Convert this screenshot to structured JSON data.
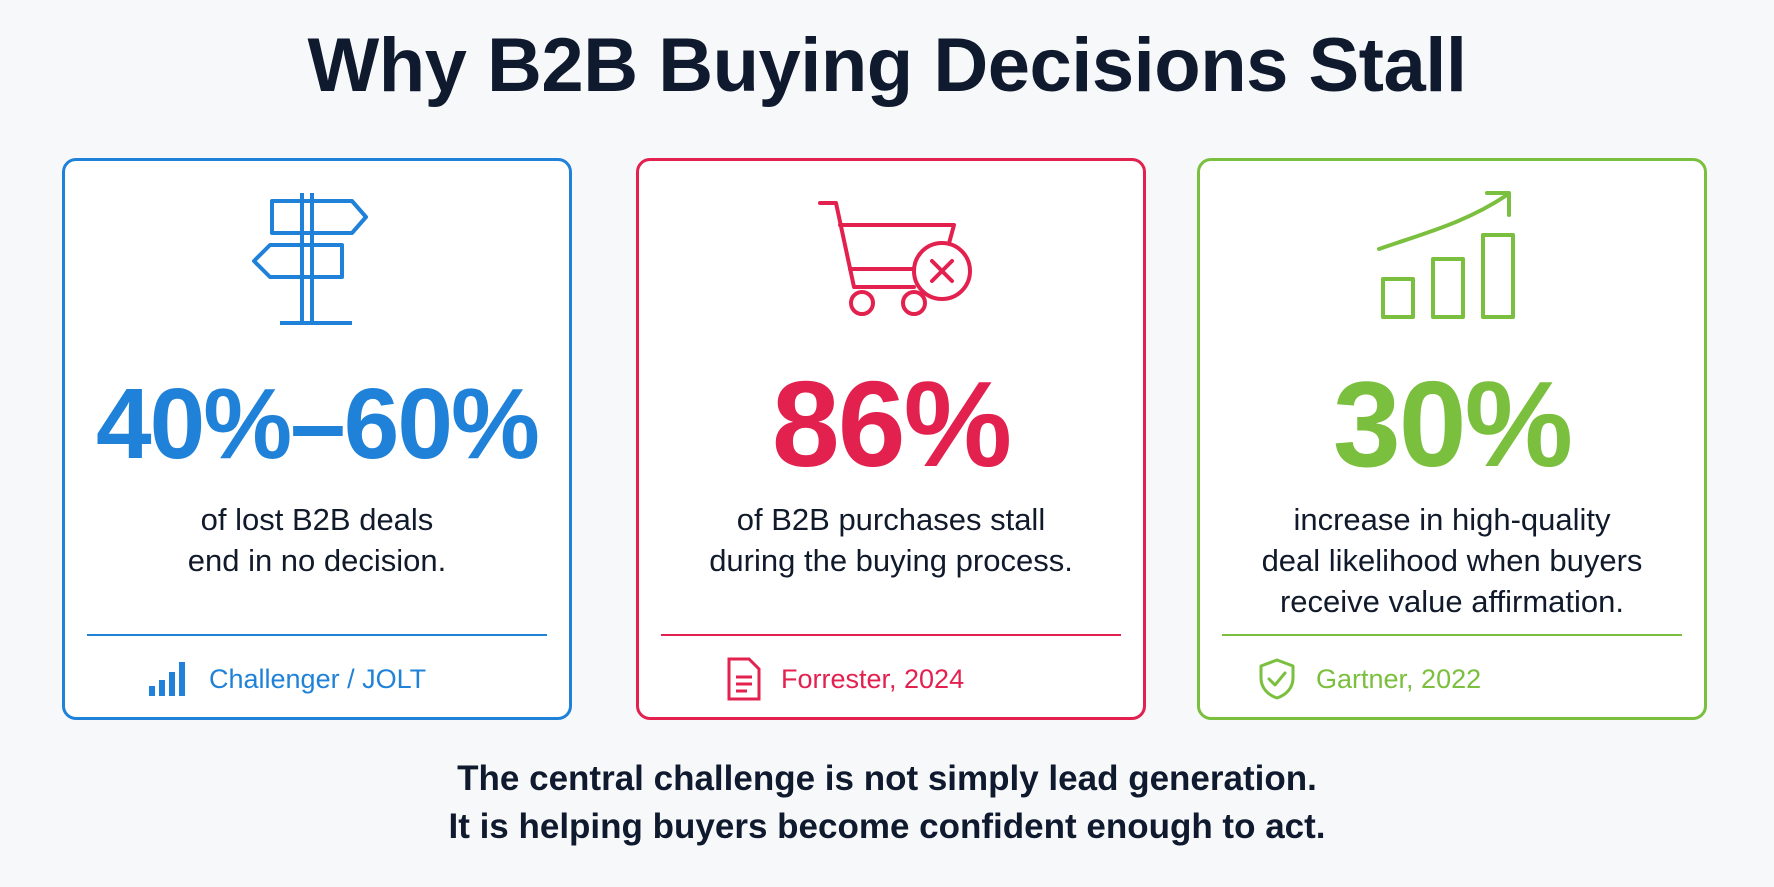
{
  "header": {
    "title": "Why B2B Buying Decisions Stall"
  },
  "cards": [
    {
      "stat": "40%–60%",
      "description": [
        "of lost B2B deals",
        "end in no decision."
      ],
      "source": "Challenger / JOLT"
    },
    {
      "stat": "86%",
      "description": [
        "of B2B purchases stall",
        "during the buying process."
      ],
      "source": "Forrester, 2024"
    },
    {
      "stat": "30%",
      "description": [
        "increase in high-quality",
        "deal likelihood when buyers",
        "receive value affirmation."
      ],
      "source": "Gartner, 2022"
    }
  ],
  "footer": {
    "lines": [
      "The central challenge is not simply lead generation.",
      "It is helping buyers become confident enough to act."
    ]
  }
}
